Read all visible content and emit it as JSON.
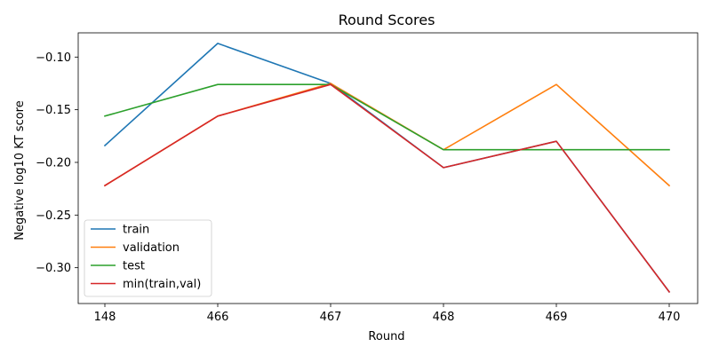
{
  "chart_data": {
    "type": "line",
    "title": "Round Scores",
    "xlabel": "Round",
    "ylabel": "Negative log10 KT score",
    "categories": [
      "148",
      "466",
      "467",
      "468",
      "469",
      "470"
    ],
    "ylim": [
      -0.334,
      -0.077
    ],
    "yticks": [
      -0.1,
      -0.15,
      -0.2,
      -0.25,
      -0.3
    ],
    "ytick_labels": [
      "−0.10",
      "−0.15",
      "−0.20",
      "−0.25",
      "−0.30"
    ],
    "grid": false,
    "legend_position": "lower-left",
    "series": [
      {
        "name": "train",
        "color": "#1f77b4",
        "values": [
          -0.184,
          -0.087,
          -0.125,
          -0.205,
          -0.18,
          -0.323
        ]
      },
      {
        "name": "validation",
        "color": "#ff7f0e",
        "values": [
          -0.222,
          -0.156,
          -0.125,
          -0.188,
          -0.126,
          -0.222
        ]
      },
      {
        "name": "test",
        "color": "#2ca02c",
        "values": [
          -0.156,
          -0.126,
          -0.126,
          -0.188,
          -0.188,
          -0.188
        ]
      },
      {
        "name": "min(train,val)",
        "color": "#d62728",
        "values": [
          -0.222,
          -0.156,
          -0.126,
          -0.205,
          -0.18,
          -0.323
        ]
      }
    ]
  }
}
